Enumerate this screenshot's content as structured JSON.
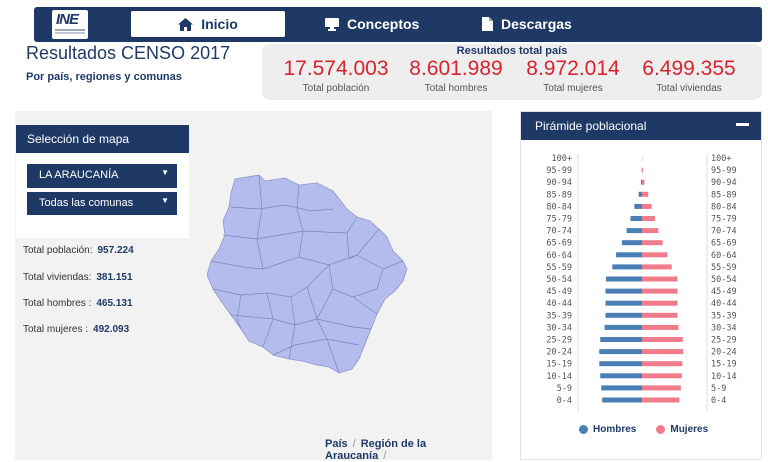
{
  "nav": {
    "logo_text": "INE",
    "tabs": [
      {
        "label": "Inicio",
        "icon": "home-icon"
      },
      {
        "label": "Conceptos",
        "icon": "monitor-icon"
      },
      {
        "label": "Descargas",
        "icon": "file-icon"
      }
    ],
    "colors": {
      "nav_bg": "#1f3966",
      "accent_red": "#d7242f"
    }
  },
  "header": {
    "title": "Resultados CENSO 2017",
    "subtitle": "Por país, regiones y comunas"
  },
  "totals": {
    "title": "Resultados total país",
    "items": [
      {
        "value": "17.574.003",
        "label": "Total población"
      },
      {
        "value": "8.601.989",
        "label": "Total hombres"
      },
      {
        "value": "8.972.014",
        "label": "Total mujeres"
      },
      {
        "value": "6.499.355",
        "label": "Total viviendas"
      }
    ]
  },
  "map_panel": {
    "header": "Selección de mapa",
    "region_select": "LA ARAUCANÍA",
    "commune_select": "Todas las comunas",
    "stats": [
      {
        "label": "Total población:",
        "value": "957.224"
      },
      {
        "label": "Total viviendas:",
        "value": "381.151"
      },
      {
        "label": "Total hombres :",
        "value": "465.131"
      },
      {
        "label": "Total mujeres :",
        "value": "492.093"
      }
    ],
    "breadcrumb": [
      "País",
      "Región de la Araucanía"
    ],
    "map_fill": "#b3bced"
  },
  "pyramid": {
    "header": "Pirámide poblacional",
    "legend": [
      "Hombres",
      "Mujeres"
    ]
  },
  "chart_data": {
    "type": "bar",
    "title": "Pirámide poblacional",
    "categories": [
      "100+",
      "95-99",
      "90-94",
      "85-89",
      "80-84",
      "75-79",
      "70-74",
      "65-69",
      "60-64",
      "55-59",
      "50-54",
      "45-49",
      "40-44",
      "35-39",
      "30-34",
      "25-29",
      "20-24",
      "15-19",
      "10-14",
      "5-9",
      "0-4"
    ],
    "series": [
      {
        "name": "Hombres",
        "color": "#4a7fb5",
        "values": [
          0.0,
          0.05,
          0.2,
          0.7,
          1.6,
          2.4,
          3.2,
          4.2,
          5.4,
          6.2,
          7.5,
          7.6,
          7.6,
          7.6,
          7.8,
          8.7,
          8.9,
          8.9,
          8.7,
          8.5,
          8.3
        ]
      },
      {
        "name": "Mujeres",
        "color": "#f07b8b",
        "values": [
          0.05,
          0.2,
          0.5,
          1.3,
          2.0,
          2.7,
          3.4,
          4.3,
          5.3,
          6.2,
          7.4,
          7.4,
          7.4,
          7.4,
          7.6,
          8.5,
          8.6,
          8.4,
          8.3,
          8.1,
          7.8
        ]
      }
    ],
    "xlim": [
      0,
      10
    ],
    "grid": false,
    "legend_position": "bottom"
  }
}
